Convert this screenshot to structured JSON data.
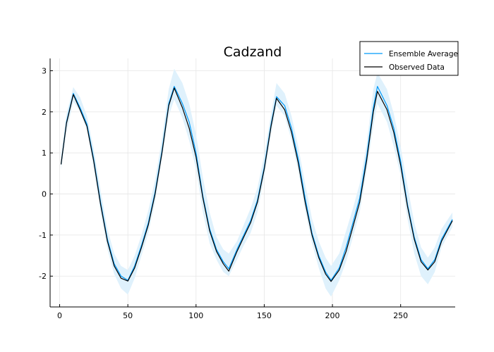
{
  "chart_data": {
    "type": "line",
    "title": "Cadzand",
    "xlabel": "",
    "ylabel": "",
    "xlim": [
      -7,
      290
    ],
    "ylim": [
      -2.75,
      3.3
    ],
    "xticks": [
      0,
      50,
      100,
      150,
      200,
      250
    ],
    "yticks": [
      -2,
      -1,
      0,
      1,
      2,
      3
    ],
    "grid": true,
    "legend_position": "top-right",
    "band": {
      "color": "#dff1fc",
      "x": [
        1,
        5,
        10,
        15,
        20,
        25,
        30,
        35,
        40,
        45,
        50,
        55,
        60,
        65,
        70,
        75,
        80,
        84,
        90,
        95,
        100,
        105,
        110,
        115,
        120,
        124,
        130,
        135,
        140,
        145,
        150,
        155,
        159,
        165,
        170,
        175,
        180,
        185,
        190,
        195,
        199,
        205,
        210,
        215,
        220,
        225,
        230,
        233,
        240,
        245,
        250,
        255,
        260,
        265,
        270,
        275,
        280,
        288
      ],
      "lower": [
        0.6,
        1.5,
        2.25,
        2.0,
        1.55,
        0.6,
        -0.45,
        -1.35,
        -1.95,
        -2.3,
        -2.45,
        -2.05,
        -1.5,
        -0.95,
        -0.2,
        0.85,
        1.9,
        2.3,
        1.85,
        1.3,
        0.6,
        -0.45,
        -1.2,
        -1.6,
        -1.9,
        -2.0,
        -1.6,
        -1.25,
        -0.95,
        -0.45,
        0.4,
        1.45,
        2.15,
        1.9,
        1.3,
        0.55,
        -0.4,
        -1.2,
        -1.8,
        -2.3,
        -2.5,
        -2.1,
        -1.65,
        -1.05,
        -0.45,
        0.55,
        1.65,
        2.2,
        1.75,
        1.15,
        0.45,
        -0.6,
        -1.45,
        -2.0,
        -2.2,
        -1.9,
        -1.3,
        -0.8
      ],
      "upper": [
        0.9,
        1.95,
        2.6,
        2.35,
        1.9,
        1.1,
        0.1,
        -0.85,
        -1.45,
        -1.75,
        -1.85,
        -1.5,
        -1.0,
        -0.4,
        0.35,
        1.35,
        2.55,
        3.05,
        2.7,
        2.2,
        1.45,
        0.4,
        -0.45,
        -1.05,
        -1.35,
        -1.45,
        -1.15,
        -0.75,
        -0.35,
        0.15,
        0.95,
        1.95,
        2.7,
        2.45,
        1.9,
        1.15,
        0.25,
        -0.6,
        -1.15,
        -1.55,
        -1.75,
        -1.45,
        -0.9,
        -0.35,
        0.25,
        1.2,
        2.55,
        2.95,
        2.55,
        1.95,
        1.15,
        0.2,
        -0.7,
        -1.3,
        -1.55,
        -1.3,
        -0.85,
        -0.45
      ]
    },
    "series": [
      {
        "name": "Ensemble Average",
        "color": "#009af9",
        "x": [
          1,
          5,
          10,
          15,
          20,
          25,
          30,
          35,
          40,
          45,
          50,
          55,
          60,
          65,
          70,
          75,
          80,
          84,
          90,
          95,
          100,
          105,
          110,
          115,
          120,
          124,
          130,
          135,
          140,
          145,
          150,
          155,
          159,
          165,
          170,
          175,
          180,
          185,
          190,
          195,
          199,
          205,
          210,
          215,
          220,
          225,
          230,
          233,
          240,
          245,
          250,
          255,
          260,
          265,
          270,
          275,
          280,
          288
        ],
        "y": [
          0.72,
          1.75,
          2.45,
          2.1,
          1.7,
          0.85,
          -0.2,
          -1.1,
          -1.7,
          -2.0,
          -2.1,
          -1.75,
          -1.25,
          -0.7,
          0.05,
          1.05,
          2.2,
          2.62,
          2.2,
          1.75,
          1.0,
          -0.05,
          -0.85,
          -1.35,
          -1.65,
          -1.82,
          -1.35,
          -1.0,
          -0.65,
          -0.15,
          0.65,
          1.7,
          2.37,
          2.15,
          1.6,
          0.85,
          -0.1,
          -0.95,
          -1.5,
          -1.9,
          -2.1,
          -1.8,
          -1.3,
          -0.7,
          -0.1,
          0.9,
          2.1,
          2.62,
          2.15,
          1.6,
          0.8,
          -0.25,
          -1.05,
          -1.6,
          -1.82,
          -1.6,
          -1.1,
          -0.62
        ]
      },
      {
        "name": "Observed Data",
        "color": "#000000",
        "x": [
          1,
          5,
          10,
          15,
          20,
          25,
          30,
          35,
          40,
          45,
          50,
          55,
          60,
          65,
          70,
          75,
          80,
          84,
          90,
          95,
          100,
          105,
          110,
          115,
          120,
          124,
          130,
          135,
          140,
          145,
          150,
          155,
          159,
          165,
          170,
          175,
          180,
          185,
          190,
          195,
          199,
          205,
          210,
          215,
          220,
          225,
          230,
          233,
          240,
          245,
          250,
          255,
          260,
          265,
          270,
          275,
          280,
          288
        ],
        "y": [
          0.72,
          1.72,
          2.42,
          2.05,
          1.65,
          0.8,
          -0.25,
          -1.15,
          -1.75,
          -2.05,
          -2.12,
          -1.8,
          -1.3,
          -0.75,
          0.0,
          1.0,
          2.15,
          2.58,
          2.1,
          1.6,
          0.9,
          -0.1,
          -0.9,
          -1.4,
          -1.7,
          -1.88,
          -1.4,
          -1.05,
          -0.7,
          -0.2,
          0.6,
          1.65,
          2.33,
          2.05,
          1.5,
          0.75,
          -0.2,
          -1.0,
          -1.55,
          -1.95,
          -2.13,
          -1.85,
          -1.4,
          -0.8,
          -0.2,
          0.8,
          2.0,
          2.5,
          2.05,
          1.5,
          0.7,
          -0.3,
          -1.1,
          -1.65,
          -1.85,
          -1.65,
          -1.15,
          -0.65
        ]
      }
    ]
  }
}
